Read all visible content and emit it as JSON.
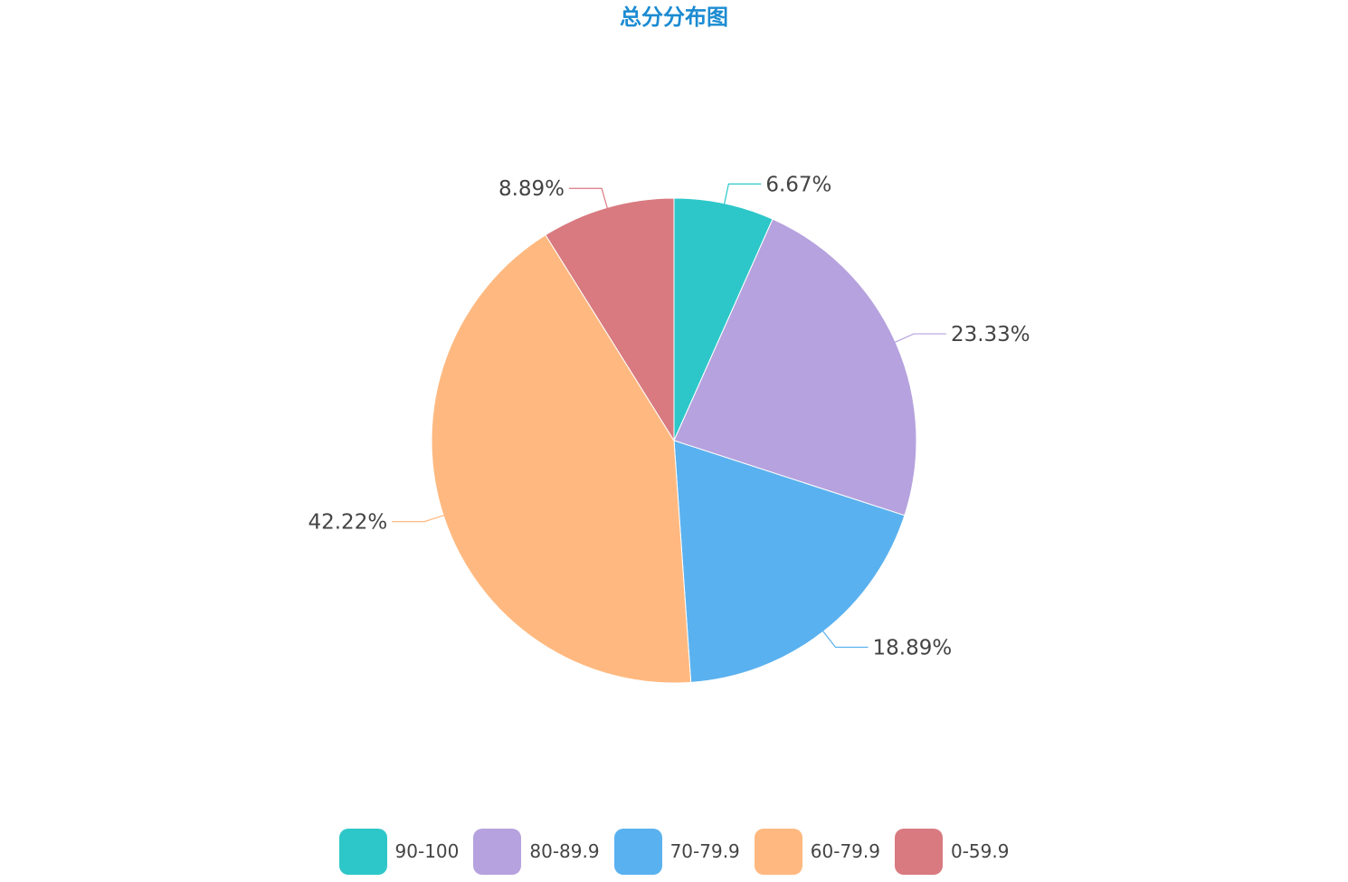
{
  "chart_data": {
    "type": "pie",
    "title": "总分分布图",
    "categories": [
      "90-100",
      "80-89.9",
      "70-79.9",
      "60-79.9",
      "0-59.9"
    ],
    "values": [
      6.67,
      23.33,
      18.89,
      42.22,
      8.89
    ],
    "labels": [
      "6.67%",
      "23.33%",
      "18.89%",
      "42.22%",
      "8.89%"
    ],
    "colors": [
      "#2ec7c9",
      "#b6a2de",
      "#5ab1ef",
      "#ffb980",
      "#d87a80"
    ],
    "legend_position": "bottom"
  }
}
